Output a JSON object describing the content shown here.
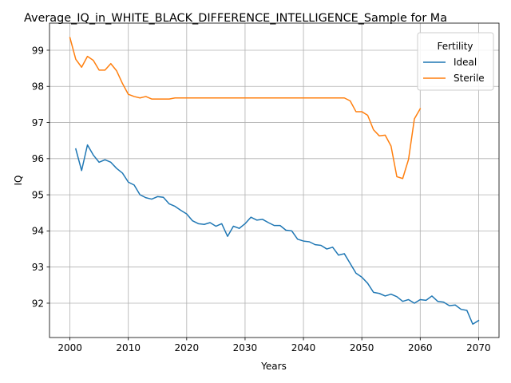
{
  "chart_data": {
    "type": "line",
    "title": "Average_IQ_in_WHITE_BLACK_DIFFERENCE_INTELLIGENCE_Sample for Ma",
    "xlabel": "Years",
    "ylabel": "IQ",
    "xlim": [
      1996.5,
      2073.5
    ],
    "ylim": [
      91.05,
      99.75
    ],
    "xticks": [
      2000,
      2010,
      2020,
      2030,
      2040,
      2050,
      2060,
      2070
    ],
    "yticks": [
      92,
      93,
      94,
      95,
      96,
      97,
      98,
      99
    ],
    "grid": true,
    "legend": {
      "title": "Fertility",
      "placement": "top-right"
    },
    "series": [
      {
        "name": "Ideal",
        "color": "#1f77b4",
        "x": [
          2001,
          2002,
          2003,
          2004,
          2005,
          2006,
          2007,
          2008,
          2009,
          2010,
          2011,
          2012,
          2013,
          2014,
          2015,
          2016,
          2017,
          2018,
          2019,
          2020,
          2021,
          2022,
          2023,
          2024,
          2025,
          2026,
          2027,
          2028,
          2029,
          2030,
          2031,
          2032,
          2033,
          2034,
          2035,
          2036,
          2037,
          2038,
          2039,
          2040,
          2041,
          2042,
          2043,
          2044,
          2045,
          2046,
          2047,
          2048,
          2049,
          2050,
          2051,
          2052,
          2053,
          2054,
          2055,
          2056,
          2057,
          2058,
          2059,
          2060,
          2061,
          2062,
          2063,
          2064,
          2065,
          2066,
          2067,
          2068,
          2069,
          2070
        ],
        "values": [
          96.27,
          95.67,
          96.38,
          96.1,
          95.9,
          95.97,
          95.9,
          95.73,
          95.6,
          95.35,
          95.27,
          95.0,
          94.92,
          94.88,
          94.95,
          94.93,
          94.75,
          94.68,
          94.57,
          94.47,
          94.28,
          94.2,
          94.18,
          94.23,
          94.13,
          94.2,
          93.85,
          94.13,
          94.07,
          94.2,
          94.38,
          94.3,
          94.32,
          94.23,
          94.15,
          94.15,
          94.02,
          94.0,
          93.77,
          93.72,
          93.7,
          93.62,
          93.6,
          93.5,
          93.55,
          93.33,
          93.37,
          93.1,
          92.83,
          92.72,
          92.55,
          92.3,
          92.27,
          92.2,
          92.25,
          92.18,
          92.05,
          92.1,
          92.0,
          92.1,
          92.08,
          92.2,
          92.05,
          92.03,
          91.93,
          91.95,
          91.83,
          91.8,
          91.42,
          91.52
        ]
      },
      {
        "name": "Sterile",
        "color": "#ff7f0e",
        "x": [
          2000,
          2001,
          2002,
          2003,
          2004,
          2005,
          2006,
          2007,
          2008,
          2009,
          2010,
          2011,
          2012,
          2013,
          2014,
          2015,
          2016,
          2017,
          2018,
          2019,
          2020,
          2021,
          2022,
          2023,
          2024,
          2025,
          2026,
          2027,
          2028,
          2029,
          2030,
          2031,
          2032,
          2033,
          2034,
          2035,
          2036,
          2037,
          2038,
          2039,
          2040,
          2041,
          2042,
          2043,
          2044,
          2045,
          2046,
          2047,
          2048,
          2049,
          2050,
          2051,
          2052,
          2053,
          2054,
          2055,
          2056,
          2057,
          2058,
          2059,
          2060
        ],
        "values": [
          99.35,
          98.75,
          98.53,
          98.83,
          98.72,
          98.45,
          98.45,
          98.63,
          98.43,
          98.08,
          97.78,
          97.72,
          97.68,
          97.72,
          97.65,
          97.65,
          97.65,
          97.65,
          97.68,
          97.68,
          97.68,
          97.68,
          97.68,
          97.68,
          97.68,
          97.68,
          97.68,
          97.68,
          97.68,
          97.68,
          97.68,
          97.68,
          97.68,
          97.68,
          97.68,
          97.68,
          97.68,
          97.68,
          97.68,
          97.68,
          97.68,
          97.68,
          97.68,
          97.68,
          97.68,
          97.68,
          97.68,
          97.68,
          97.6,
          97.3,
          97.3,
          97.2,
          96.8,
          96.63,
          96.65,
          96.35,
          95.5,
          95.45,
          95.98,
          97.1,
          97.38
        ]
      }
    ]
  }
}
